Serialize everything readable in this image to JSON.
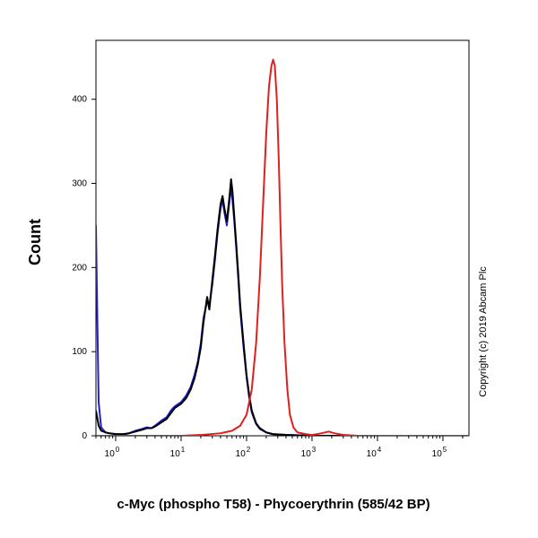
{
  "chart_data": {
    "type": "line",
    "title": "",
    "xlabel": "c-Myc (phospho T58) - Phycoerythrin (585/42 BP)",
    "ylabel": "Count",
    "x_scale": "log",
    "xlim": [
      0.5,
      250000
    ],
    "ylim": [
      0,
      470
    ],
    "x_ticks": [
      {
        "value": 1,
        "base": "10",
        "exp": "0"
      },
      {
        "value": 10,
        "base": "10",
        "exp": "1"
      },
      {
        "value": 100,
        "base": "10",
        "exp": "2"
      },
      {
        "value": 1000,
        "base": "10",
        "exp": "3"
      },
      {
        "value": 10000,
        "base": "10",
        "exp": "4"
      },
      {
        "value": 100000,
        "base": "10",
        "exp": "5"
      }
    ],
    "y_ticks": [
      0,
      100,
      200,
      300,
      400
    ],
    "grid": false,
    "annotation": "Copyright (c) 2019 Abcam Plc",
    "series": [
      {
        "color": "#2020cc",
        "points": [
          [
            0.5,
            250
          ],
          [
            0.52,
            160
          ],
          [
            0.55,
            40
          ],
          [
            0.6,
            10
          ],
          [
            0.7,
            4
          ],
          [
            0.8,
            3
          ],
          [
            1.0,
            2
          ],
          [
            1.3,
            1
          ],
          [
            1.6,
            3
          ],
          [
            2.0,
            6
          ],
          [
            2.5,
            8
          ],
          [
            3.0,
            10
          ],
          [
            3.5,
            9
          ],
          [
            4.0,
            12
          ],
          [
            5.0,
            18
          ],
          [
            6.0,
            22
          ],
          [
            7.0,
            30
          ],
          [
            8.0,
            35
          ],
          [
            10,
            40
          ],
          [
            12,
            48
          ],
          [
            14,
            58
          ],
          [
            16,
            72
          ],
          [
            18,
            88
          ],
          [
            20,
            110
          ],
          [
            22,
            140
          ],
          [
            25,
            160
          ],
          [
            27,
            155
          ],
          [
            30,
            180
          ],
          [
            33,
            210
          ],
          [
            36,
            240
          ],
          [
            40,
            270
          ],
          [
            43,
            280
          ],
          [
            46,
            265
          ],
          [
            50,
            250
          ],
          [
            55,
            280
          ],
          [
            58,
            295
          ],
          [
            61,
            280
          ],
          [
            65,
            255
          ],
          [
            70,
            220
          ],
          [
            75,
            185
          ],
          [
            80,
            150
          ],
          [
            90,
            105
          ],
          [
            100,
            70
          ],
          [
            110,
            45
          ],
          [
            120,
            28
          ],
          [
            140,
            14
          ],
          [
            160,
            8
          ],
          [
            200,
            4
          ],
          [
            250,
            2
          ],
          [
            400,
            1
          ],
          [
            1000,
            0
          ],
          [
            250000,
            0
          ]
        ]
      },
      {
        "color": "#000000",
        "points": [
          [
            0.5,
            30
          ],
          [
            0.55,
            12
          ],
          [
            0.6,
            6
          ],
          [
            0.7,
            4
          ],
          [
            0.8,
            3
          ],
          [
            1.0,
            2
          ],
          [
            1.3,
            2
          ],
          [
            1.6,
            3
          ],
          [
            2.0,
            5
          ],
          [
            2.5,
            7
          ],
          [
            3.0,
            9
          ],
          [
            3.5,
            9
          ],
          [
            4.0,
            11
          ],
          [
            5.0,
            16
          ],
          [
            6.0,
            20
          ],
          [
            7.0,
            27
          ],
          [
            8.0,
            33
          ],
          [
            10,
            38
          ],
          [
            12,
            45
          ],
          [
            14,
            55
          ],
          [
            16,
            68
          ],
          [
            18,
            85
          ],
          [
            20,
            105
          ],
          [
            22,
            135
          ],
          [
            25,
            165
          ],
          [
            27,
            150
          ],
          [
            30,
            185
          ],
          [
            33,
            215
          ],
          [
            36,
            245
          ],
          [
            40,
            275
          ],
          [
            43,
            285
          ],
          [
            46,
            270
          ],
          [
            50,
            255
          ],
          [
            55,
            285
          ],
          [
            58,
            305
          ],
          [
            61,
            290
          ],
          [
            65,
            260
          ],
          [
            70,
            225
          ],
          [
            75,
            190
          ],
          [
            80,
            155
          ],
          [
            90,
            110
          ],
          [
            100,
            72
          ],
          [
            110,
            48
          ],
          [
            120,
            30
          ],
          [
            140,
            15
          ],
          [
            160,
            9
          ],
          [
            200,
            4
          ],
          [
            250,
            2
          ],
          [
            400,
            1
          ],
          [
            1000,
            0
          ],
          [
            250000,
            0
          ]
        ]
      },
      {
        "color": "#e02020",
        "points": [
          [
            0.5,
            0
          ],
          [
            10,
            0
          ],
          [
            20,
            1
          ],
          [
            40,
            3
          ],
          [
            60,
            6
          ],
          [
            80,
            12
          ],
          [
            100,
            25
          ],
          [
            120,
            55
          ],
          [
            140,
            110
          ],
          [
            160,
            190
          ],
          [
            180,
            280
          ],
          [
            200,
            360
          ],
          [
            220,
            415
          ],
          [
            240,
            440
          ],
          [
            255,
            447
          ],
          [
            270,
            440
          ],
          [
            290,
            400
          ],
          [
            310,
            330
          ],
          [
            330,
            250
          ],
          [
            350,
            180
          ],
          [
            380,
            110
          ],
          [
            420,
            55
          ],
          [
            460,
            25
          ],
          [
            520,
            10
          ],
          [
            600,
            4
          ],
          [
            800,
            2
          ],
          [
            1000,
            1
          ],
          [
            1400,
            3
          ],
          [
            1800,
            5
          ],
          [
            2200,
            3
          ],
          [
            3000,
            1
          ],
          [
            5000,
            0
          ],
          [
            250000,
            0
          ]
        ]
      }
    ]
  }
}
